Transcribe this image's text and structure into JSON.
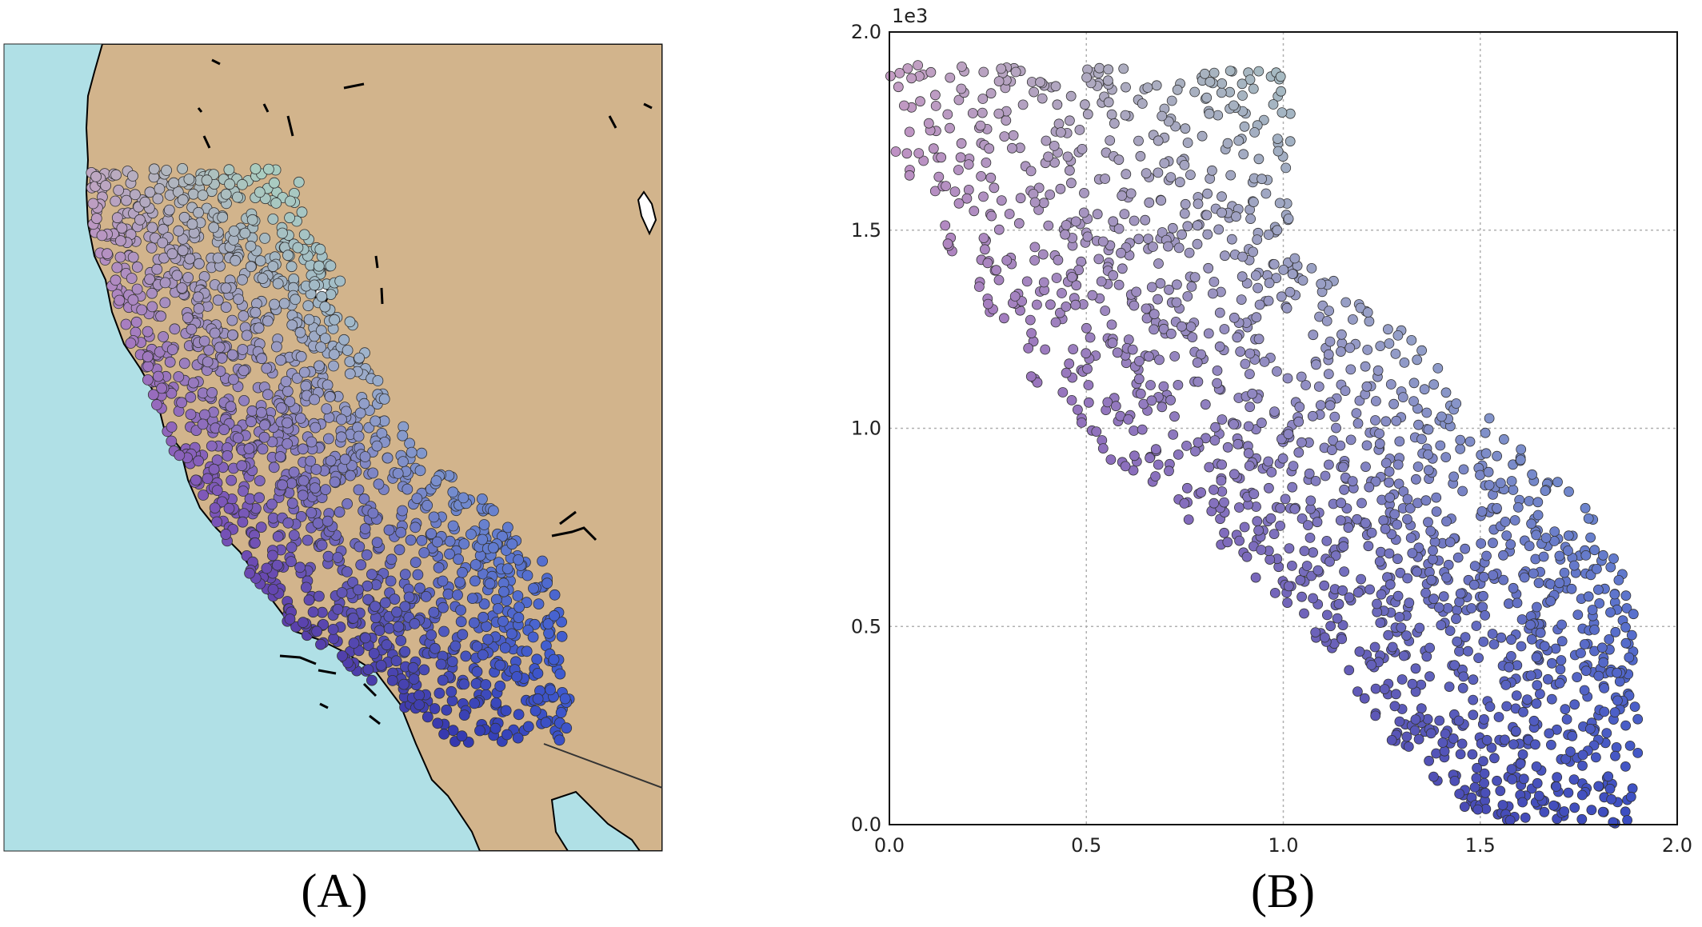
{
  "captions": {
    "a": "(A)",
    "b": "(B)"
  },
  "colors": {
    "ocean": "#b0e0e6",
    "land": "#d2b48c",
    "coast": "#000000",
    "grid": "#b0b0b0",
    "cmap": [
      "#8a8c6e",
      "#b0dcb8",
      "#9fb4cc",
      "#c893c6",
      "#7a54b8",
      "#3f5bd0",
      "#2a1f9a"
    ]
  },
  "map": {
    "description_visible": "map of California with colored point cloud"
  },
  "chart_data": [
    {
      "type": "scatter",
      "panel": "B",
      "offset_label": "1e3",
      "xlim": [
        0.0,
        2.0
      ],
      "ylim": [
        0.0,
        2.0
      ],
      "xticks": [
        "0.0",
        "0.5",
        "1.0",
        "1.5",
        "2.0"
      ],
      "yticks": [
        "0.0",
        "0.5",
        "1.0",
        "1.5",
        "2.0"
      ],
      "grid": true,
      "approx_points": 1600,
      "region_outline": [
        [
          0.0,
          1.92
        ],
        [
          1.02,
          1.9
        ],
        [
          1.02,
          1.45
        ],
        [
          1.3,
          1.25
        ],
        [
          1.6,
          0.95
        ],
        [
          1.78,
          0.8
        ],
        [
          1.9,
          0.55
        ],
        [
          1.9,
          0.0
        ],
        [
          1.5,
          0.0
        ],
        [
          1.3,
          0.18
        ],
        [
          1.1,
          0.45
        ],
        [
          0.85,
          0.7
        ],
        [
          0.55,
          0.9
        ],
        [
          0.3,
          1.2
        ],
        [
          0.1,
          1.55
        ],
        [
          0.0,
          1.7
        ]
      ]
    }
  ]
}
